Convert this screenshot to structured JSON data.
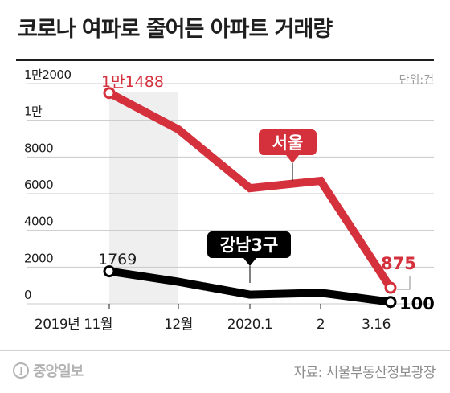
{
  "title": "코로나 여파로 줄어든 아파트 거래량",
  "unit_label": "단위:건",
  "source": "자료: 서울부동산정보광장",
  "logo_text": "중앙일보",
  "logo_mark": "J",
  "colors": {
    "seoul": "#d4313d",
    "gangnam": "#000000",
    "shade": "#efefef",
    "grid": "#c8c8c8",
    "axis_text": "#1e1e1e"
  },
  "chart_data": {
    "type": "line",
    "title": "코로나 여파로 줄어든 아파트 거래량",
    "xlabel": "",
    "ylabel": "",
    "categories": [
      "2019년 11월",
      "12월",
      "2020.1",
      "2",
      "3.16"
    ],
    "yticks": [
      {
        "value": 0,
        "label": "0"
      },
      {
        "value": 2000,
        "label": "2000"
      },
      {
        "value": 4000,
        "label": "4000"
      },
      {
        "value": 6000,
        "label": "6000"
      },
      {
        "value": 8000,
        "label": "8000"
      },
      {
        "value": 10000,
        "label": "1만"
      },
      {
        "value": 12000,
        "label": "1만2000"
      }
    ],
    "ylim": [
      0,
      12000
    ],
    "grid": true,
    "series": [
      {
        "name": "서울",
        "values": [
          11488,
          9500,
          6300,
          6700,
          875
        ],
        "data_labels": [
          {
            "index": 0,
            "text": "1만1488"
          },
          {
            "index": 4,
            "text": "875"
          }
        ]
      },
      {
        "name": "강남3구",
        "values": [
          1769,
          1200,
          500,
          600,
          100
        ],
        "data_labels": [
          {
            "index": 0,
            "text": "1769"
          },
          {
            "index": 4,
            "text": "100"
          }
        ]
      }
    ]
  }
}
